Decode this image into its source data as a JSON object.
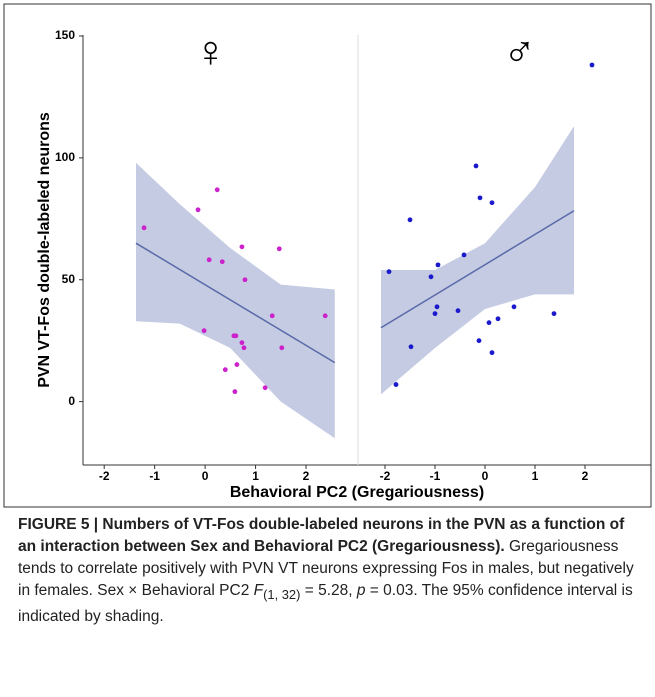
{
  "chart_data": [
    {
      "type": "scatter",
      "title": "♀",
      "ylabel": "PVN VT-Fos double-labeled neurons",
      "xlabel": "Behavioral PC2 (Gregariousness)",
      "color": "#cc22cc",
      "line_color": "#5a6aa8",
      "band_color": "#c5cbe3",
      "xlim": [
        -2.42,
        3.03
      ],
      "xticks": [
        -2,
        -1,
        0,
        1,
        2
      ],
      "ylim": [
        -26,
        150
      ],
      "yticks": [
        0,
        50,
        100,
        150
      ],
      "x": [
        -1.21,
        0.24,
        -0.14,
        0.08,
        0.34,
        0.73,
        0.79,
        1.47,
        1.33,
        2.38,
        -0.02,
        0.57,
        0.61,
        0.73,
        0.77,
        1.52,
        0.63,
        0.4,
        1.19,
        0.59
      ],
      "y": [
        71.3,
        86.9,
        78.7,
        58.2,
        57.4,
        63.5,
        50,
        62.7,
        35.2,
        35.2,
        29.1,
        27,
        27,
        24.2,
        22.1,
        22.1,
        15.2,
        13.1,
        5.7,
        4.1
      ],
      "fit": {
        "x": [
          -1.37,
          2.57
        ],
        "y": [
          65,
          16
        ]
      },
      "band": {
        "x": [
          -1.37,
          -0.5,
          0.5,
          1.5,
          2.57
        ],
        "upper": [
          98,
          81,
          63,
          48,
          46
        ],
        "lower": [
          33,
          32,
          22,
          0,
          -15
        ]
      }
    },
    {
      "type": "scatter",
      "title": "♂",
      "color": "#1a1acc",
      "line_color": "#5a6aa8",
      "band_color": "#c5cbe3",
      "xlim": [
        -2.54,
        3.32
      ],
      "xticks": [
        -2,
        -1,
        0,
        1,
        2
      ],
      "ylim": [
        -26,
        150
      ],
      "x": [
        2.14,
        -0.18,
        -0.1,
        0.14,
        -1.5,
        -1.92,
        -0.42,
        -0.94,
        -1.08,
        -0.96,
        -1.0,
        -0.54,
        0.58,
        1.38,
        0.26,
        0.08,
        -1.48,
        -0.12,
        0.14,
        -1.78
      ],
      "y": [
        138.1,
        96.7,
        83.6,
        81.6,
        74.6,
        53.3,
        60.2,
        56.1,
        51.2,
        38.9,
        36.1,
        37.3,
        38.9,
        36.1,
        34,
        32.4,
        22.5,
        25,
        20.1,
        7
      ],
      "fit": {
        "x": [
          -2.08,
          1.78
        ],
        "y": [
          30.3,
          78.3
        ]
      },
      "band": {
        "x": [
          -2.08,
          -1,
          0,
          1,
          1.78
        ],
        "upper": [
          54,
          54,
          65,
          88,
          113
        ],
        "lower": [
          3,
          22,
          38,
          44,
          44
        ]
      }
    }
  ],
  "caption": {
    "heading": "FIGURE 5 | Numbers of VT-Fos double-labeled neurons in the PVN as a function of an interaction between Sex and Behavioral PC2 (Gregariousness).",
    "text1": " Gregariousness tends to correlate positively with PVN VT neurons expressing Fos in males, but negatively in females. Sex × Behavioral PC2 ",
    "stat_f": "F",
    "stat_sub": "(1, 32)",
    "text2": " = 5.28, ",
    "stat_p": "p",
    "text3": " = 0.03. The 95% confidence interval is indicated by shading."
  }
}
